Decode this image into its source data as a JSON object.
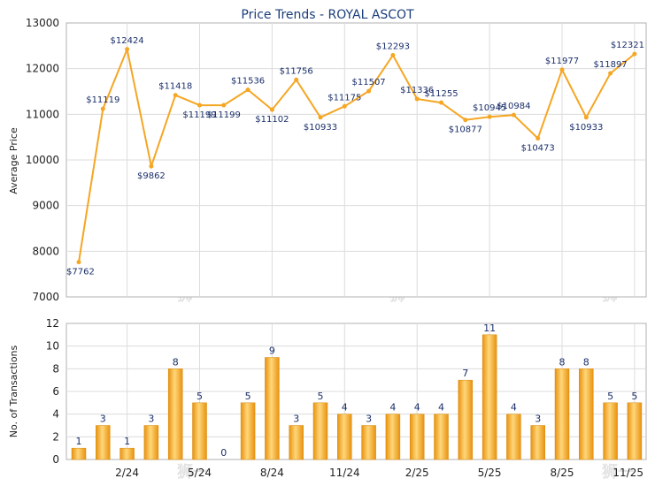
{
  "chart_data": [
    {
      "type": "line",
      "title": "Price Trends - ROYAL ASCOT",
      "ylabel": "Average Price",
      "ylim": [
        7000,
        13000
      ],
      "yticks": [
        7000,
        8000,
        9000,
        10000,
        11000,
        12000,
        13000
      ],
      "color": "#f5a623",
      "grid": true,
      "values": [
        7762,
        11119,
        12424,
        9862,
        11418,
        11199,
        11199,
        11536,
        11102,
        11756,
        10933,
        11175,
        11507,
        12293,
        11336,
        11255,
        10877,
        10945,
        10984,
        10473,
        11977,
        10933,
        11897,
        12321
      ],
      "labels": [
        "$7762",
        "$11119",
        "$12424",
        "$9862",
        "$11418",
        "$11199",
        "$11199",
        "$11536",
        "$11102",
        "$11756",
        "$10933",
        "$11175",
        "$11507",
        "$12293",
        "$11336",
        "$11255",
        "$10877",
        "$10945",
        "$10984",
        "$10473",
        "$11977",
        "$10933",
        "$11897",
        "$12321"
      ]
    },
    {
      "type": "bar",
      "ylabel": "No. of Transactions",
      "ylim": [
        0,
        12
      ],
      "yticks": [
        0,
        2,
        4,
        6,
        8,
        10,
        12
      ],
      "color": "#f5a623",
      "grid": true,
      "x_tick_labels": [
        "2/24",
        "5/24",
        "8/24",
        "11/24",
        "2/25",
        "5/25",
        "8/25",
        "11/25"
      ],
      "values": [
        1,
        3,
        1,
        3,
        8,
        5,
        0,
        5,
        9,
        3,
        5,
        4,
        3,
        4,
        4,
        4,
        7,
        11,
        4,
        3,
        8,
        8,
        5,
        5
      ]
    }
  ]
}
